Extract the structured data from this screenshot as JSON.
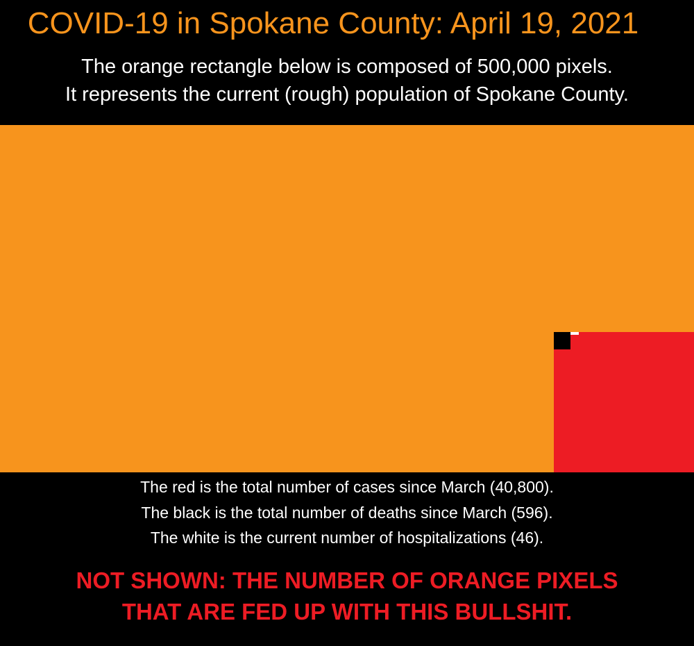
{
  "header": {
    "title": "COVID-19 in Spokane County: April 19, 2021",
    "subtitle_line1": "The orange rectangle below is composed of 500,000 pixels.",
    "subtitle_line2": "It represents the current (rough) population of Spokane County."
  },
  "legend": {
    "line1": "The red is the total number of cases since March (40,800).",
    "line2": "The black is the total number of deaths since March (596).",
    "line3": "The white is the current number of hospitalizations (46)."
  },
  "footer": {
    "line1": "NOT SHOWN: THE NUMBER OF ORANGE PIXELS",
    "line2": "THAT ARE FED UP WITH THIS BULLSHIT."
  },
  "colors": {
    "population": "#f7941d",
    "cases": "#ed1c24",
    "deaths": "#000000",
    "hospitalizations": "#ffffff",
    "background": "#000000"
  },
  "chart_data": {
    "type": "area",
    "title": "COVID-19 in Spokane County: April 19, 2021",
    "series": [
      {
        "name": "population",
        "value": 500000,
        "color": "#f7941d"
      },
      {
        "name": "cases",
        "value": 40800,
        "color": "#ed1c24"
      },
      {
        "name": "deaths",
        "value": 596,
        "color": "#000000"
      },
      {
        "name": "hospitalizations",
        "value": 46,
        "color": "#ffffff"
      }
    ]
  }
}
